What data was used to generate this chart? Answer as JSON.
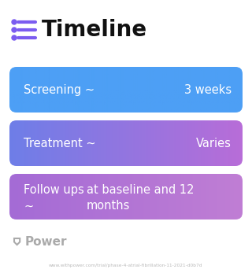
{
  "title": "Timeline",
  "title_icon_color": "#7b5cf0",
  "title_fontsize": 20,
  "title_fontweight": "bold",
  "background_color": "#ffffff",
  "watermark": "Power",
  "watermark_color": "#aaaaaa",
  "url_text": "www.withpower.com/trial/phase-4-atrial-fibrillation-11-2021-d0b7d",
  "rows": [
    {
      "label": "Screening ~",
      "value": "3 weeks",
      "color_left": "#4d9ff5",
      "color_right": "#4d9ff5",
      "multiline_label": false,
      "multiline_value": false
    },
    {
      "label": "Treatment ~",
      "value": "Varies",
      "color_left": "#6e7ee8",
      "color_right": "#b86dd8",
      "multiline_label": false,
      "multiline_value": false
    },
    {
      "label": "Follow ups\n~",
      "value": "at baseline and 12\nmonths",
      "color_left": "#a46bd6",
      "color_right": "#c07ed4",
      "multiline_label": true,
      "multiline_value": true
    }
  ]
}
